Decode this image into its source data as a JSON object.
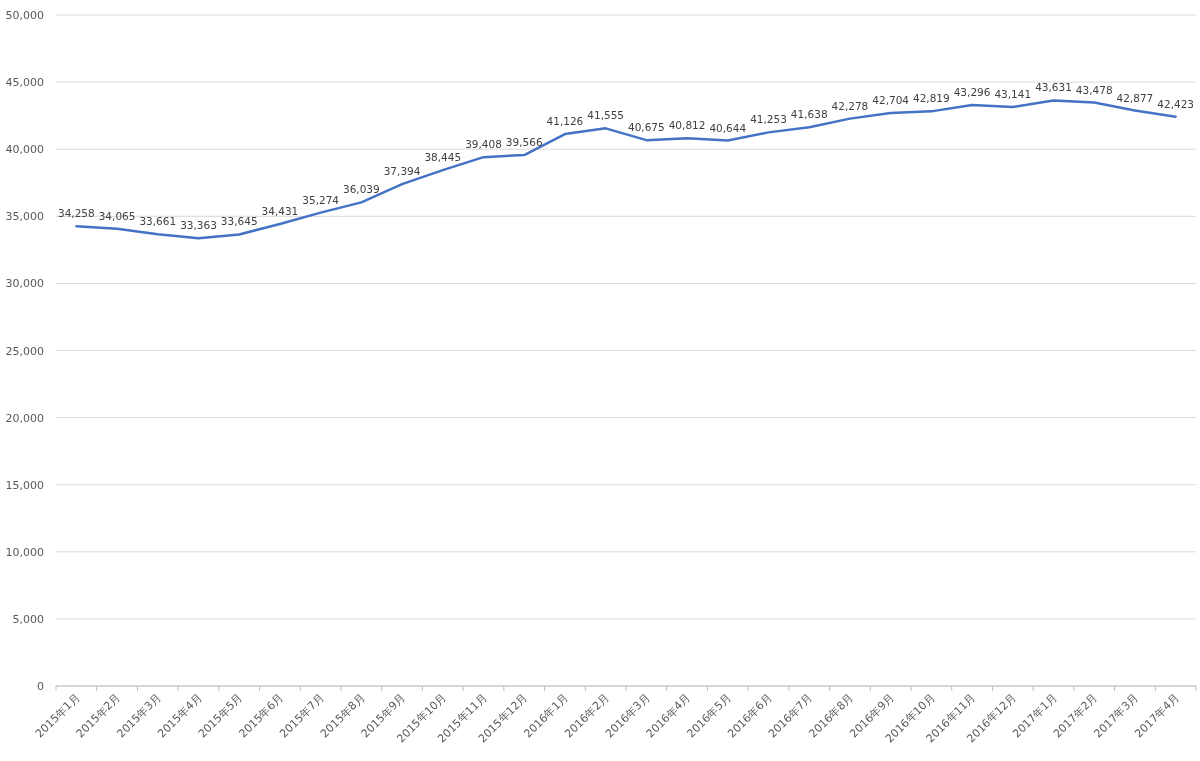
{
  "chart_data": {
    "type": "line",
    "categories": [
      "2015年1月",
      "2015年2月",
      "2015年3月",
      "2015年4月",
      "2015年5月",
      "2015年6月",
      "2015年7月",
      "2015年8月",
      "2015年9月",
      "2015年10月",
      "2015年11月",
      "2015年12月",
      "2016年1月",
      "2016年2月",
      "2016年3月",
      "2016年4月",
      "2016年5月",
      "2016年6月",
      "2016年7月",
      "2016年8月",
      "2016年9月",
      "2016年10月",
      "2016年11月",
      "2016年12月",
      "2017年1月",
      "2017年2月",
      "2017年3月",
      "2017年4月"
    ],
    "values": [
      34258,
      34065,
      33661,
      33363,
      33645,
      34431,
      35274,
      36039,
      37394,
      38445,
      39408,
      39566,
      41126,
      41555,
      40675,
      40812,
      40644,
      41253,
      41638,
      42278,
      42704,
      42819,
      43296,
      43141,
      43631,
      43478,
      42877,
      42423
    ],
    "color": "#4472c4",
    "ylim": [
      0,
      50000
    ],
    "yticks": [
      0,
      {
        "value": 5000,
        "label": "5,000"
      },
      {
        "value": 10000,
        "label": "10,000"
      },
      {
        "value": 15000,
        "label": "15,000"
      },
      {
        "value": 20000,
        "label": "20,000"
      },
      {
        "value": 25000,
        "label": "25,000"
      },
      {
        "value": 30000,
        "label": "30,000"
      },
      {
        "value": 35000,
        "label": "35,000"
      },
      {
        "value": 40000,
        "label": "40,000"
      },
      {
        "value": 45000,
        "label": "45,000"
      },
      {
        "value": 50000,
        "label": "50,000"
      }
    ],
    "grid": "y",
    "value_labels": [
      "34,258",
      "34,065",
      "33,661",
      "33,363",
      "33,645",
      "34,431",
      "35,274",
      "36,039",
      "37,394",
      "38,445",
      "39,408",
      "39,566",
      "41,126",
      "41,555",
      "40,675",
      "40,812",
      "40,644",
      "41,253",
      "41,638",
      "42,278",
      "42,704",
      "42,819",
      "43,296",
      "43,141",
      "43,631",
      "43,478",
      "42,877",
      "42,423"
    ]
  }
}
